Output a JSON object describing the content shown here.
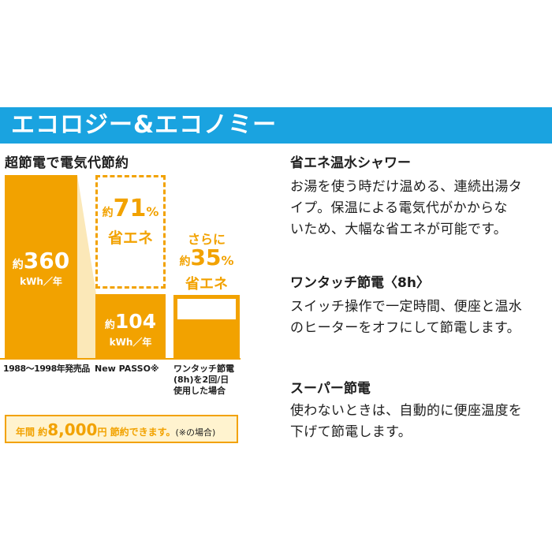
{
  "banner": {
    "title": "エコロジー&エコノミー"
  },
  "chart": {
    "title": "超節電で電気代節約",
    "old_bar": {
      "prefix": "約",
      "value": "360",
      "unit": "kWh／年",
      "xlabel": "1988～1998年発売品"
    },
    "new_bar": {
      "prefix": "約",
      "value": "104",
      "unit": "kWh／年",
      "xlabel": "New PASSO※"
    },
    "new_saving": {
      "prefix": "約",
      "value": "71",
      "pct": "%",
      "label": "省エネ"
    },
    "touch_bar": {
      "more": "さらに",
      "prefix": "約",
      "value": "35",
      "pct": "%",
      "label": "省エネ",
      "xlabel_lines": [
        "ワンタッチ節電",
        "(8h)を2回/日",
        "使用した場合"
      ]
    },
    "savings": {
      "part1": "年間 約",
      "amount": "8,000",
      "unit": "円",
      "part2": " 節約できます。",
      "note": "(※の場合)"
    }
  },
  "features": [
    {
      "title": "省エネ温水シャワー",
      "lines": [
        "お湯を使う時だけ温める、連続出湯タ",
        "イプ。保温による電気代がかからな",
        "いため、大幅な省エネが可能です。"
      ]
    },
    {
      "title": "ワンタッチ節電〈8h〉",
      "lines": [
        "スイッチ操作で一定時間、便座と温水",
        "のヒーターをオフにして節電します。"
      ]
    },
    {
      "title": "スーパー節電",
      "lines": [
        "使わないときは、自動的に便座温度を",
        "下げて節電します。"
      ]
    }
  ]
}
